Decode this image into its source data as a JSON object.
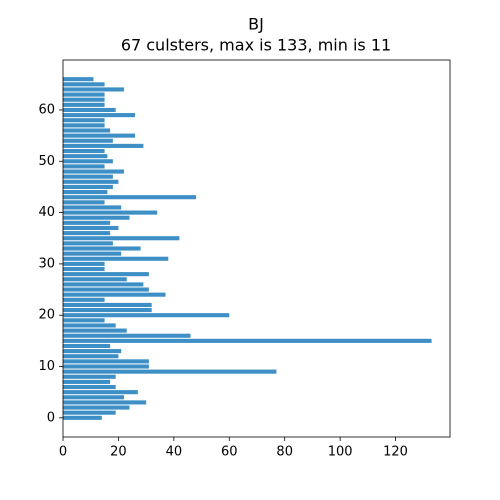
{
  "chart_data": {
    "type": "barh",
    "title": "BJ",
    "subtitle": "67 culsters, max is 133, min is 11",
    "y": [
      0,
      1,
      2,
      3,
      4,
      5,
      6,
      7,
      8,
      9,
      10,
      11,
      12,
      13,
      14,
      15,
      16,
      17,
      18,
      19,
      20,
      21,
      22,
      23,
      24,
      25,
      26,
      27,
      28,
      29,
      30,
      31,
      32,
      33,
      34,
      35,
      36,
      37,
      38,
      39,
      40,
      41,
      42,
      43,
      44,
      45,
      46,
      47,
      48,
      49,
      50,
      51,
      52,
      53,
      54,
      55,
      56,
      57,
      58,
      59,
      60,
      61,
      62,
      63,
      64,
      65,
      66
    ],
    "values": [
      14,
      19,
      24,
      30,
      22,
      27,
      19,
      17,
      19,
      77,
      31,
      31,
      20,
      21,
      17,
      133,
      46,
      23,
      19,
      15,
      60,
      32,
      32,
      15,
      37,
      31,
      29,
      23,
      31,
      15,
      15,
      38,
      21,
      28,
      18,
      42,
      17,
      20,
      17,
      24,
      34,
      21,
      15,
      48,
      16,
      18,
      20,
      18,
      22,
      15,
      18,
      16,
      15,
      29,
      18,
      26,
      17,
      15,
      15,
      26,
      19,
      15,
      15,
      15,
      22,
      15,
      11
    ],
    "color": "#3d8fc5",
    "xlim": [
      0,
      139.65
    ],
    "xticks": [
      0,
      20,
      40,
      60,
      80,
      100,
      120
    ],
    "ylim": [
      -3.74,
      69.74
    ],
    "yticks": [
      0,
      10,
      20,
      30,
      40,
      50,
      60
    ]
  }
}
